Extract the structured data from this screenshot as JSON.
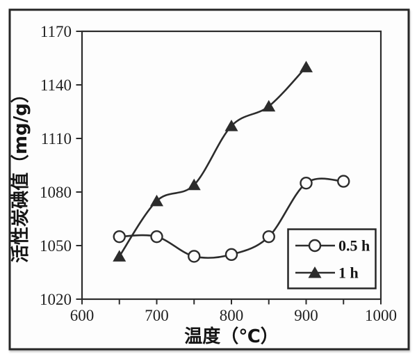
{
  "figure": {
    "frame_color": "#262626",
    "background": "#fdfdfd",
    "ink": "#2c2c2c",
    "text_color": "#1f1f1f"
  },
  "chart_data": {
    "type": "line",
    "title": "",
    "xlabel": "温度（℃）",
    "ylabel": "活性炭碘值（mg/g）",
    "xlim": [
      600,
      1000
    ],
    "ylim": [
      1020,
      1170
    ],
    "x_major_ticks": [
      600,
      700,
      800,
      900,
      1000
    ],
    "x_minor_ticks": [
      650,
      750,
      850,
      950
    ],
    "y_ticks": [
      1020,
      1050,
      1080,
      1110,
      1140,
      1170
    ],
    "grid": false,
    "legend_position": "lower-right",
    "series": [
      {
        "name": "0.5 h",
        "marker": "circle",
        "x": [
          650,
          700,
          750,
          800,
          850,
          900,
          950
        ],
        "values": [
          1055,
          1055,
          1044,
          1045,
          1055,
          1085,
          1086
        ]
      },
      {
        "name": "1 h",
        "marker": "triangle",
        "x": [
          650,
          700,
          750,
          800,
          850,
          900
        ],
        "values": [
          1044,
          1075,
          1084,
          1117,
          1128,
          1150
        ]
      }
    ]
  },
  "legend": {
    "items": [
      {
        "label": "0.5 h",
        "marker": "circle"
      },
      {
        "label": "1 h",
        "marker": "triangle"
      }
    ]
  }
}
